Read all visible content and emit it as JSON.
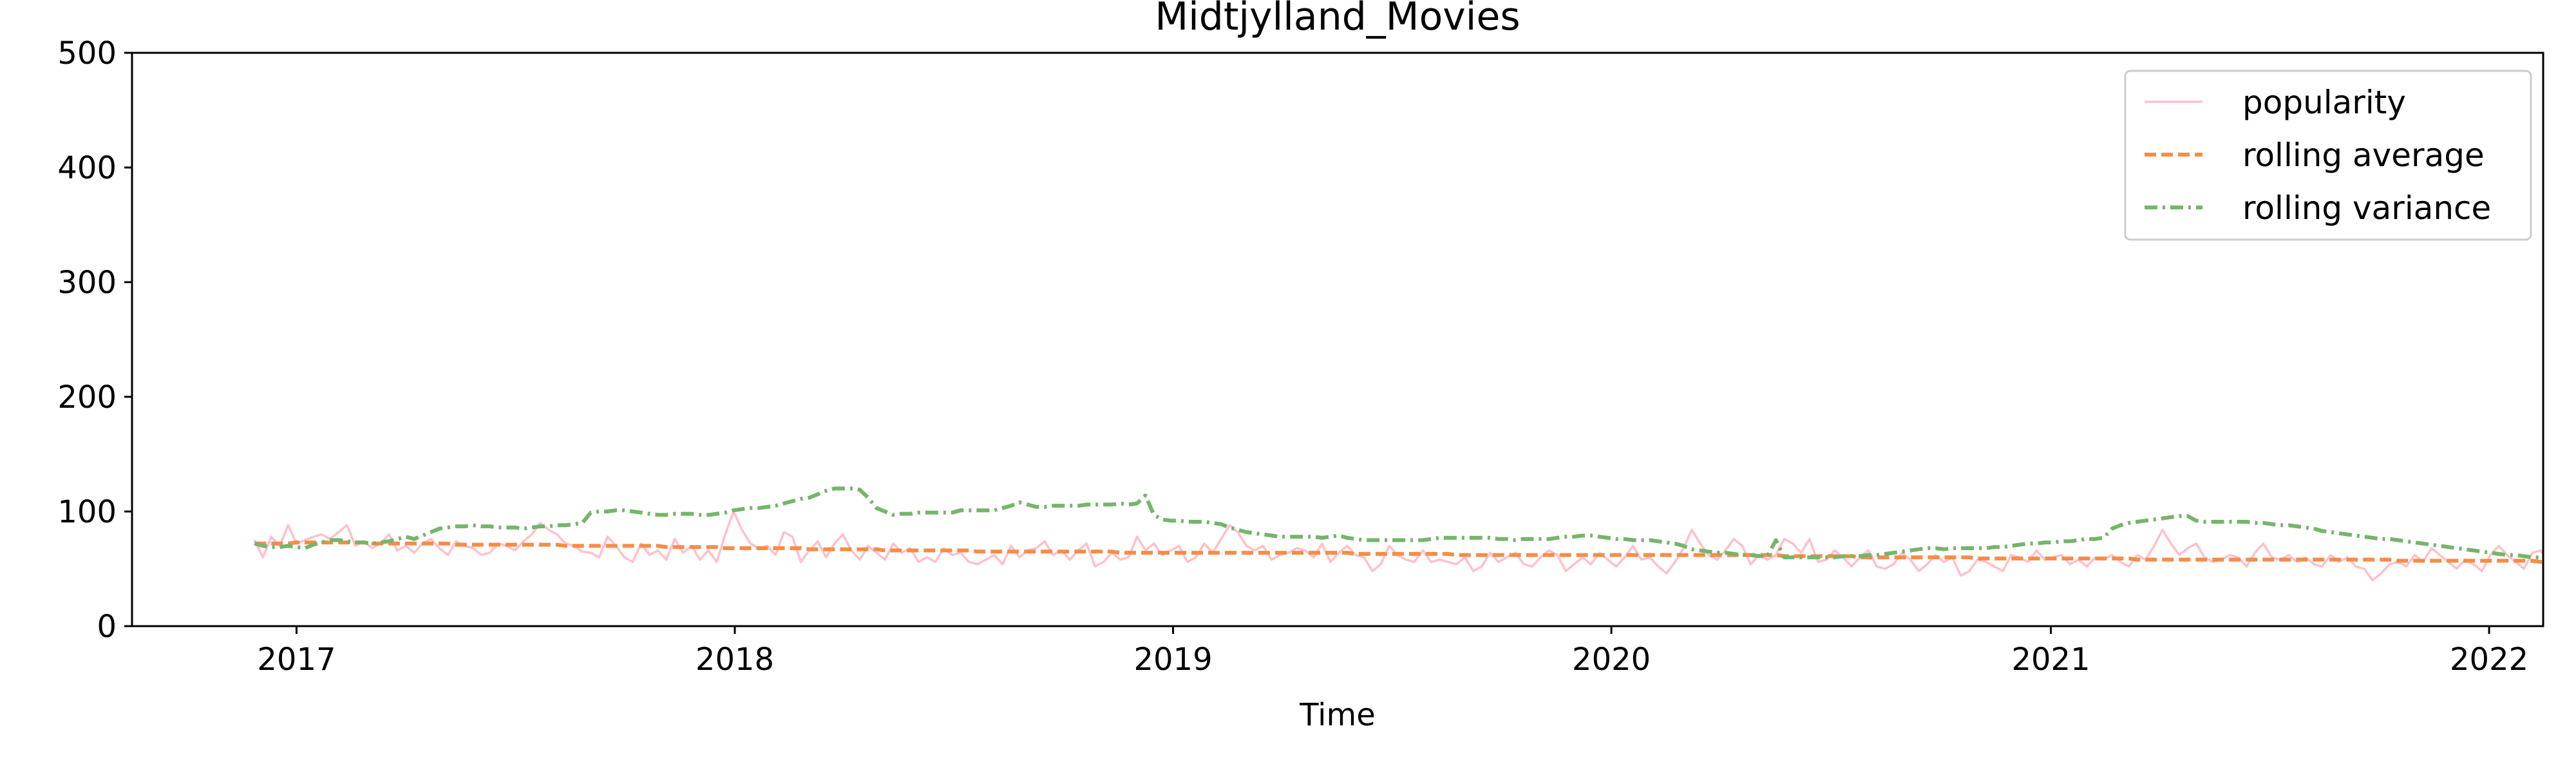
{
  "chart_data": {
    "type": "line",
    "title": "Midtjylland_Movies",
    "xlabel": "Time",
    "ylabel": "",
    "xlim": [
      "2016-08-17",
      "2022-02-15"
    ],
    "ylim": [
      0,
      500
    ],
    "x_ticks": [
      "2017",
      "2018",
      "2019",
      "2020",
      "2021",
      "2022"
    ],
    "y_ticks": [
      "0",
      "100",
      "200",
      "300",
      "400",
      "500"
    ],
    "grid": false,
    "legend_position": "top-right",
    "legend": [
      "popularity",
      "rolling average",
      "rolling variance"
    ],
    "x_start": "2016-11-27",
    "x_step_days": 7,
    "series": [
      {
        "name": "popularity",
        "color": "#ffc0cb",
        "style": "solid",
        "values": [
          75,
          60,
          78,
          70,
          88,
          72,
          75,
          78,
          80,
          76,
          82,
          88,
          70,
          74,
          68,
          72,
          80,
          66,
          70,
          64,
          72,
          76,
          68,
          62,
          74,
          70,
          68,
          62,
          64,
          72,
          70,
          66,
          74,
          80,
          90,
          84,
          80,
          72,
          70,
          65,
          64,
          60,
          78,
          70,
          60,
          56,
          72,
          62,
          66,
          58,
          76,
          64,
          70,
          58,
          66,
          56,
          80,
          100,
          84,
          72,
          68,
          70,
          62,
          82,
          78,
          56,
          66,
          74,
          60,
          72,
          80,
          66,
          58,
          70,
          64,
          58,
          72,
          64,
          68,
          56,
          60,
          56,
          68,
          62,
          64,
          56,
          54,
          58,
          62,
          54,
          70,
          60,
          66,
          68,
          74,
          62,
          66,
          58,
          66,
          72,
          52,
          56,
          64,
          58,
          60,
          78,
          66,
          72,
          62,
          66,
          70,
          56,
          60,
          72,
          64,
          76,
          88,
          82,
          70,
          66,
          70,
          58,
          62,
          64,
          68,
          66,
          60,
          72,
          56,
          64,
          70,
          62,
          60,
          48,
          54,
          70,
          62,
          58,
          56,
          66,
          56,
          58,
          56,
          54,
          60,
          48,
          52,
          64,
          56,
          60,
          64,
          54,
          52,
          60,
          66,
          62,
          48,
          54,
          60,
          54,
          64,
          58,
          52,
          60,
          70,
          58,
          60,
          52,
          46,
          56,
          68,
          84,
          72,
          62,
          58,
          66,
          76,
          70,
          54,
          62,
          58,
          62,
          76,
          72,
          64,
          76,
          56,
          58,
          66,
          60,
          52,
          60,
          66,
          52,
          50,
          54,
          64,
          58,
          48,
          54,
          62,
          56,
          60,
          44,
          48,
          58,
          56,
          52,
          48,
          62,
          60,
          56,
          66,
          58,
          60,
          62,
          54,
          58,
          52,
          60,
          58,
          62,
          56,
          52,
          62,
          58,
          70,
          84,
          72,
          62,
          68,
          72,
          60,
          56,
          58,
          62,
          60,
          52,
          64,
          72,
          60,
          58,
          62,
          56,
          60,
          54,
          52,
          62,
          56,
          60,
          52,
          50,
          40,
          46,
          54,
          56,
          52,
          62,
          56,
          68,
          62,
          56,
          50,
          58,
          54,
          48,
          62,
          70,
          62,
          56,
          50,
          64,
          66,
          54,
          58,
          62,
          56,
          60
        ]
      },
      {
        "name": "rolling average",
        "color": "#f58d47",
        "style": "dashed",
        "values": [
          72,
          72,
          72,
          72,
          72,
          73,
          73,
          73,
          73,
          73,
          73,
          73,
          73,
          73,
          72,
          72,
          72,
          72,
          72,
          72,
          72,
          72,
          72,
          72,
          71,
          71,
          71,
          71,
          71,
          71,
          71,
          71,
          71,
          71,
          71,
          71,
          71,
          70,
          70,
          70,
          70,
          70,
          70,
          70,
          70,
          70,
          70,
          70,
          70,
          69,
          69,
          69,
          69,
          69,
          69,
          69,
          68,
          68,
          68,
          68,
          68,
          68,
          68,
          68,
          68,
          68,
          67,
          67,
          67,
          67,
          67,
          67,
          67,
          67,
          67,
          66,
          66,
          66,
          66,
          66,
          66,
          66,
          66,
          66,
          66,
          66,
          65,
          65,
          65,
          65,
          65,
          65,
          65,
          65,
          65,
          65,
          65,
          65,
          65,
          65,
          65,
          65,
          65,
          64,
          64,
          64,
          64,
          64,
          64,
          64,
          64,
          64,
          64,
          64,
          64,
          64,
          64,
          64,
          64,
          64,
          64,
          64,
          64,
          64,
          64,
          64,
          64,
          64,
          64,
          64,
          64,
          63,
          63,
          63,
          63,
          63,
          63,
          63,
          63,
          63,
          63,
          63,
          63,
          62,
          62,
          62,
          62,
          62,
          62,
          62,
          62,
          62,
          62,
          62,
          62,
          62,
          62,
          62,
          62,
          62,
          62,
          62,
          62,
          62,
          62,
          62,
          62,
          62,
          62,
          62,
          62,
          62,
          62,
          62,
          62,
          62,
          62,
          62,
          62,
          62,
          62,
          62,
          61,
          61,
          61,
          61,
          61,
          61,
          61,
          61,
          61,
          60,
          60,
          60,
          60,
          60,
          60,
          60,
          60,
          60,
          60,
          60,
          60,
          60,
          60,
          59,
          59,
          59,
          59,
          59,
          59,
          59,
          59,
          59,
          59,
          59,
          59,
          59,
          59,
          59,
          59,
          59,
          59,
          59,
          58,
          58,
          58,
          58,
          58,
          58,
          58,
          58,
          58,
          58,
          58,
          58,
          58,
          58,
          58,
          58,
          58,
          58,
          58,
          58,
          58,
          58,
          58,
          58,
          58,
          58,
          58,
          58,
          58,
          58,
          58,
          57,
          57,
          57,
          57,
          57,
          57,
          57,
          57,
          57,
          57,
          57,
          57,
          57,
          57,
          57,
          57,
          57,
          56,
          56,
          56,
          56,
          56,
          56,
          56,
          56,
          56,
          56,
          56,
          56,
          56,
          56,
          56
        ]
      },
      {
        "name": "rolling variance",
        "color": "#75b56b",
        "style": "dashdot",
        "values": [
          72,
          70,
          69,
          69,
          70,
          69,
          68,
          71,
          73,
          75,
          75,
          74,
          73,
          73,
          72,
          73,
          74,
          76,
          78,
          76,
          79,
          82,
          85,
          86,
          87,
          87,
          88,
          87,
          87,
          86,
          86,
          86,
          85,
          86,
          87,
          87,
          88,
          88,
          89,
          90,
          99,
          100,
          100,
          101,
          101,
          100,
          99,
          98,
          97,
          97,
          98,
          98,
          98,
          97,
          97,
          98,
          99,
          101,
          102,
          103,
          103,
          104,
          105,
          107,
          109,
          111,
          112,
          115,
          118,
          120,
          120,
          120,
          119,
          112,
          103,
          100,
          97,
          98,
          98,
          99,
          99,
          99,
          99,
          99,
          101,
          101,
          101,
          101,
          101,
          103,
          105,
          108,
          106,
          104,
          104,
          105,
          105,
          105,
          105,
          106,
          106,
          106,
          106,
          107,
          106,
          107,
          114,
          97,
          93,
          92,
          92,
          91,
          91,
          91,
          90,
          89,
          86,
          84,
          82,
          81,
          80,
          79,
          78,
          78,
          78,
          78,
          78,
          77,
          78,
          79,
          77,
          76,
          75,
          75,
          75,
          75,
          75,
          75,
          75,
          75,
          76,
          77,
          77,
          77,
          77,
          77,
          77,
          77,
          76,
          76,
          75,
          76,
          76,
          76,
          76,
          77,
          78,
          78,
          79,
          79,
          78,
          77,
          76,
          76,
          75,
          75,
          75,
          74,
          73,
          72,
          70,
          67,
          66,
          65,
          64,
          64,
          63,
          62,
          62,
          61,
          61,
          75,
          60,
          60,
          60,
          60,
          60,
          60,
          60,
          61,
          61,
          61,
          62,
          62,
          63,
          64,
          65,
          66,
          67,
          68,
          68,
          67,
          68,
          68,
          68,
          68,
          68,
          69,
          69,
          70,
          71,
          72,
          72,
          73,
          73,
          74,
          74,
          75,
          76,
          76,
          77,
          85,
          88,
          90,
          91,
          92,
          93,
          94,
          95,
          96,
          96,
          92,
          91,
          91,
          91,
          91,
          91,
          91,
          90,
          90,
          89,
          88,
          88,
          87,
          86,
          85,
          83,
          82,
          81,
          80,
          79,
          78,
          77,
          76,
          76,
          75,
          74,
          73,
          72,
          71,
          70,
          69,
          68,
          67,
          66,
          65,
          64,
          63,
          62,
          62,
          61,
          60,
          60,
          59,
          58,
          58,
          57,
          57,
          56,
          56,
          55,
          55,
          54,
          54,
          53,
          53,
          52,
          52,
          52,
          52,
          52,
          53,
          54,
          55,
          56
        ]
      }
    ]
  }
}
